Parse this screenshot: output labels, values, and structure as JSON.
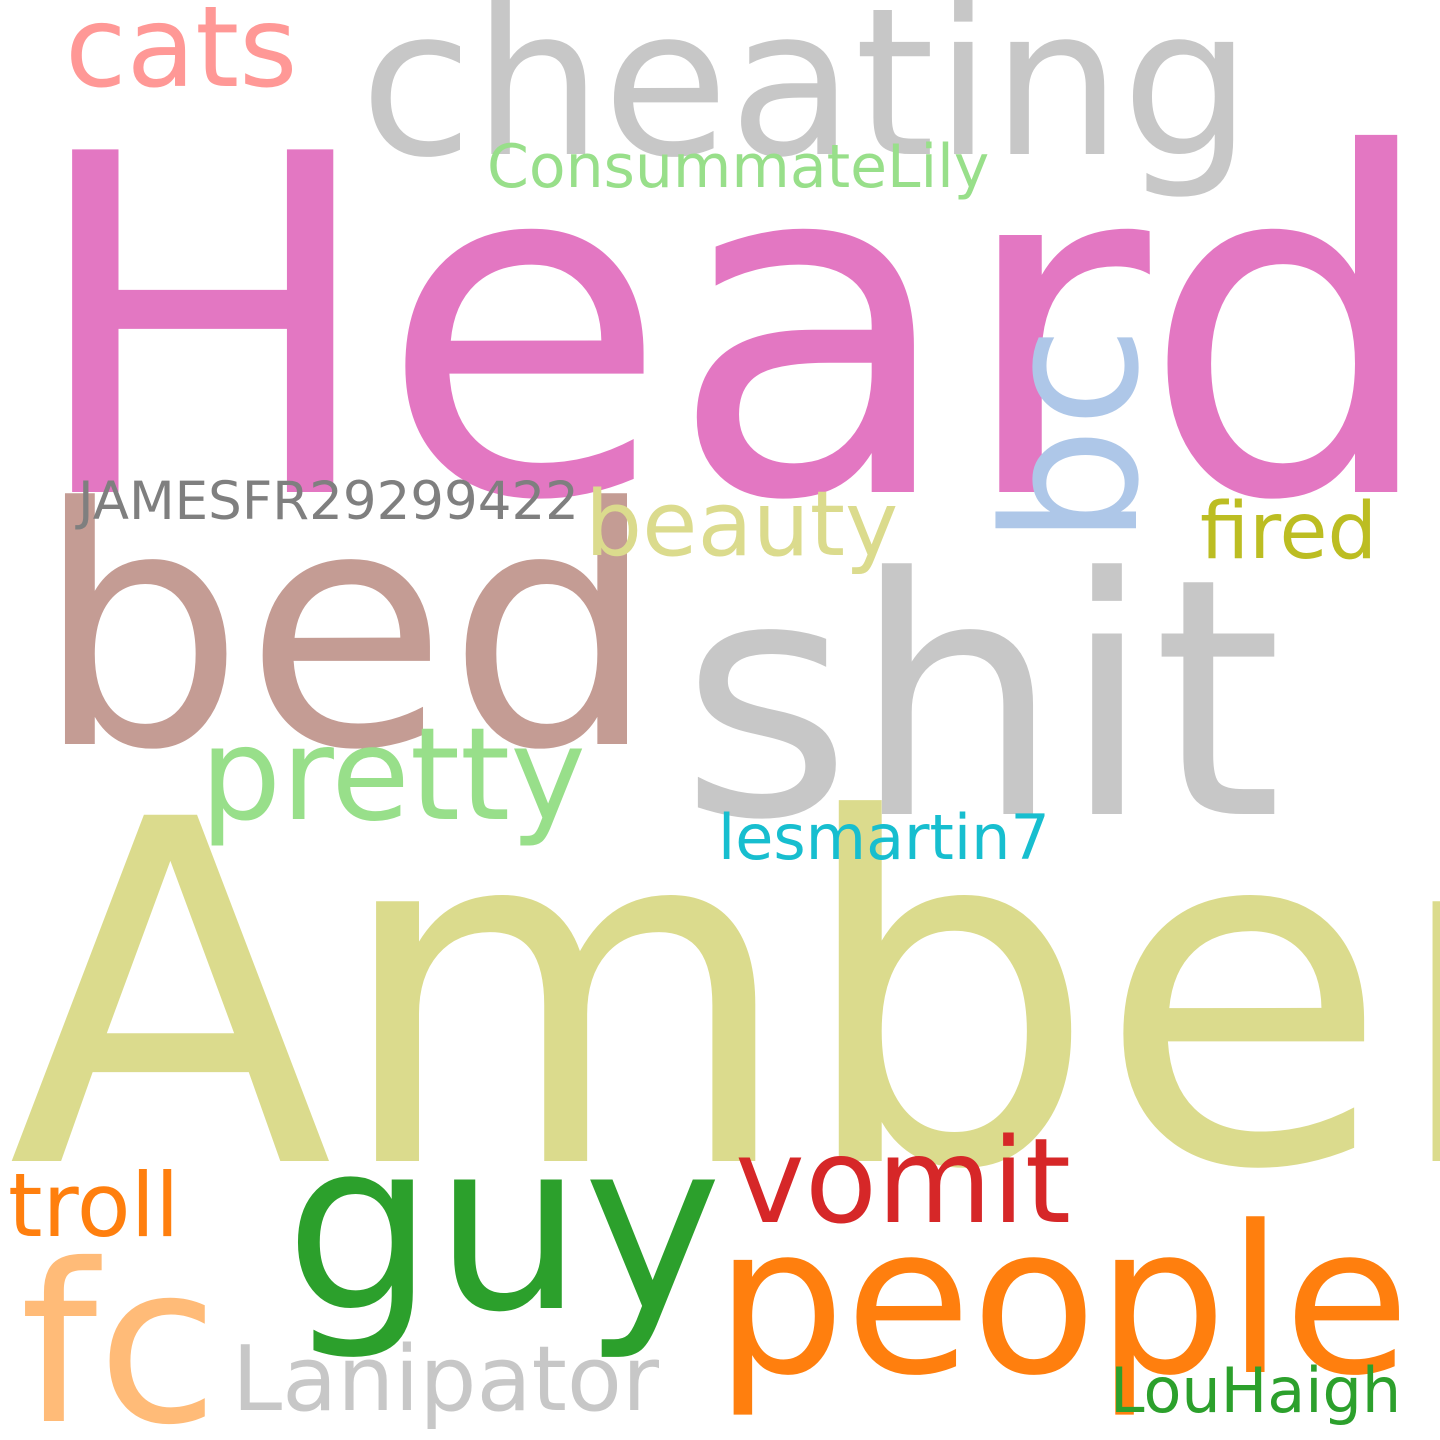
{
  "words": [
    {
      "text": "Heard",
      "color": "#e377c2"
    },
    {
      "text": "Amber",
      "color": "#dbdb8d"
    },
    {
      "text": "shit",
      "color": "#c7c7c7"
    },
    {
      "text": "bed",
      "color": "#c49c94"
    },
    {
      "text": "cheating",
      "color": "#c7c7c7"
    },
    {
      "text": "guy",
      "color": "#2ca02c"
    },
    {
      "text": "people",
      "color": "#ff7f0e"
    },
    {
      "text": "fc",
      "color": "#ffbb78"
    },
    {
      "text": "bc",
      "color": "#aec7e8"
    },
    {
      "text": "cats",
      "color": "#ff9896"
    },
    {
      "text": "pretty",
      "color": "#98df8a"
    },
    {
      "text": "beauty",
      "color": "#dbdb8d"
    },
    {
      "text": "vomit",
      "color": "#d62728"
    },
    {
      "text": "Lanipator",
      "color": "#c7c7c7"
    },
    {
      "text": "troll",
      "color": "#ff7f0e"
    },
    {
      "text": "fired",
      "color": "#bcbd22"
    },
    {
      "text": "ConsummateLily",
      "color": "#98df8a"
    },
    {
      "text": "JAMESFR29299422",
      "color": "#7f7f7f"
    },
    {
      "text": "lesmartin7",
      "color": "#17becf"
    },
    {
      "text": "LouHaigh",
      "color": "#2ca02c"
    }
  ]
}
